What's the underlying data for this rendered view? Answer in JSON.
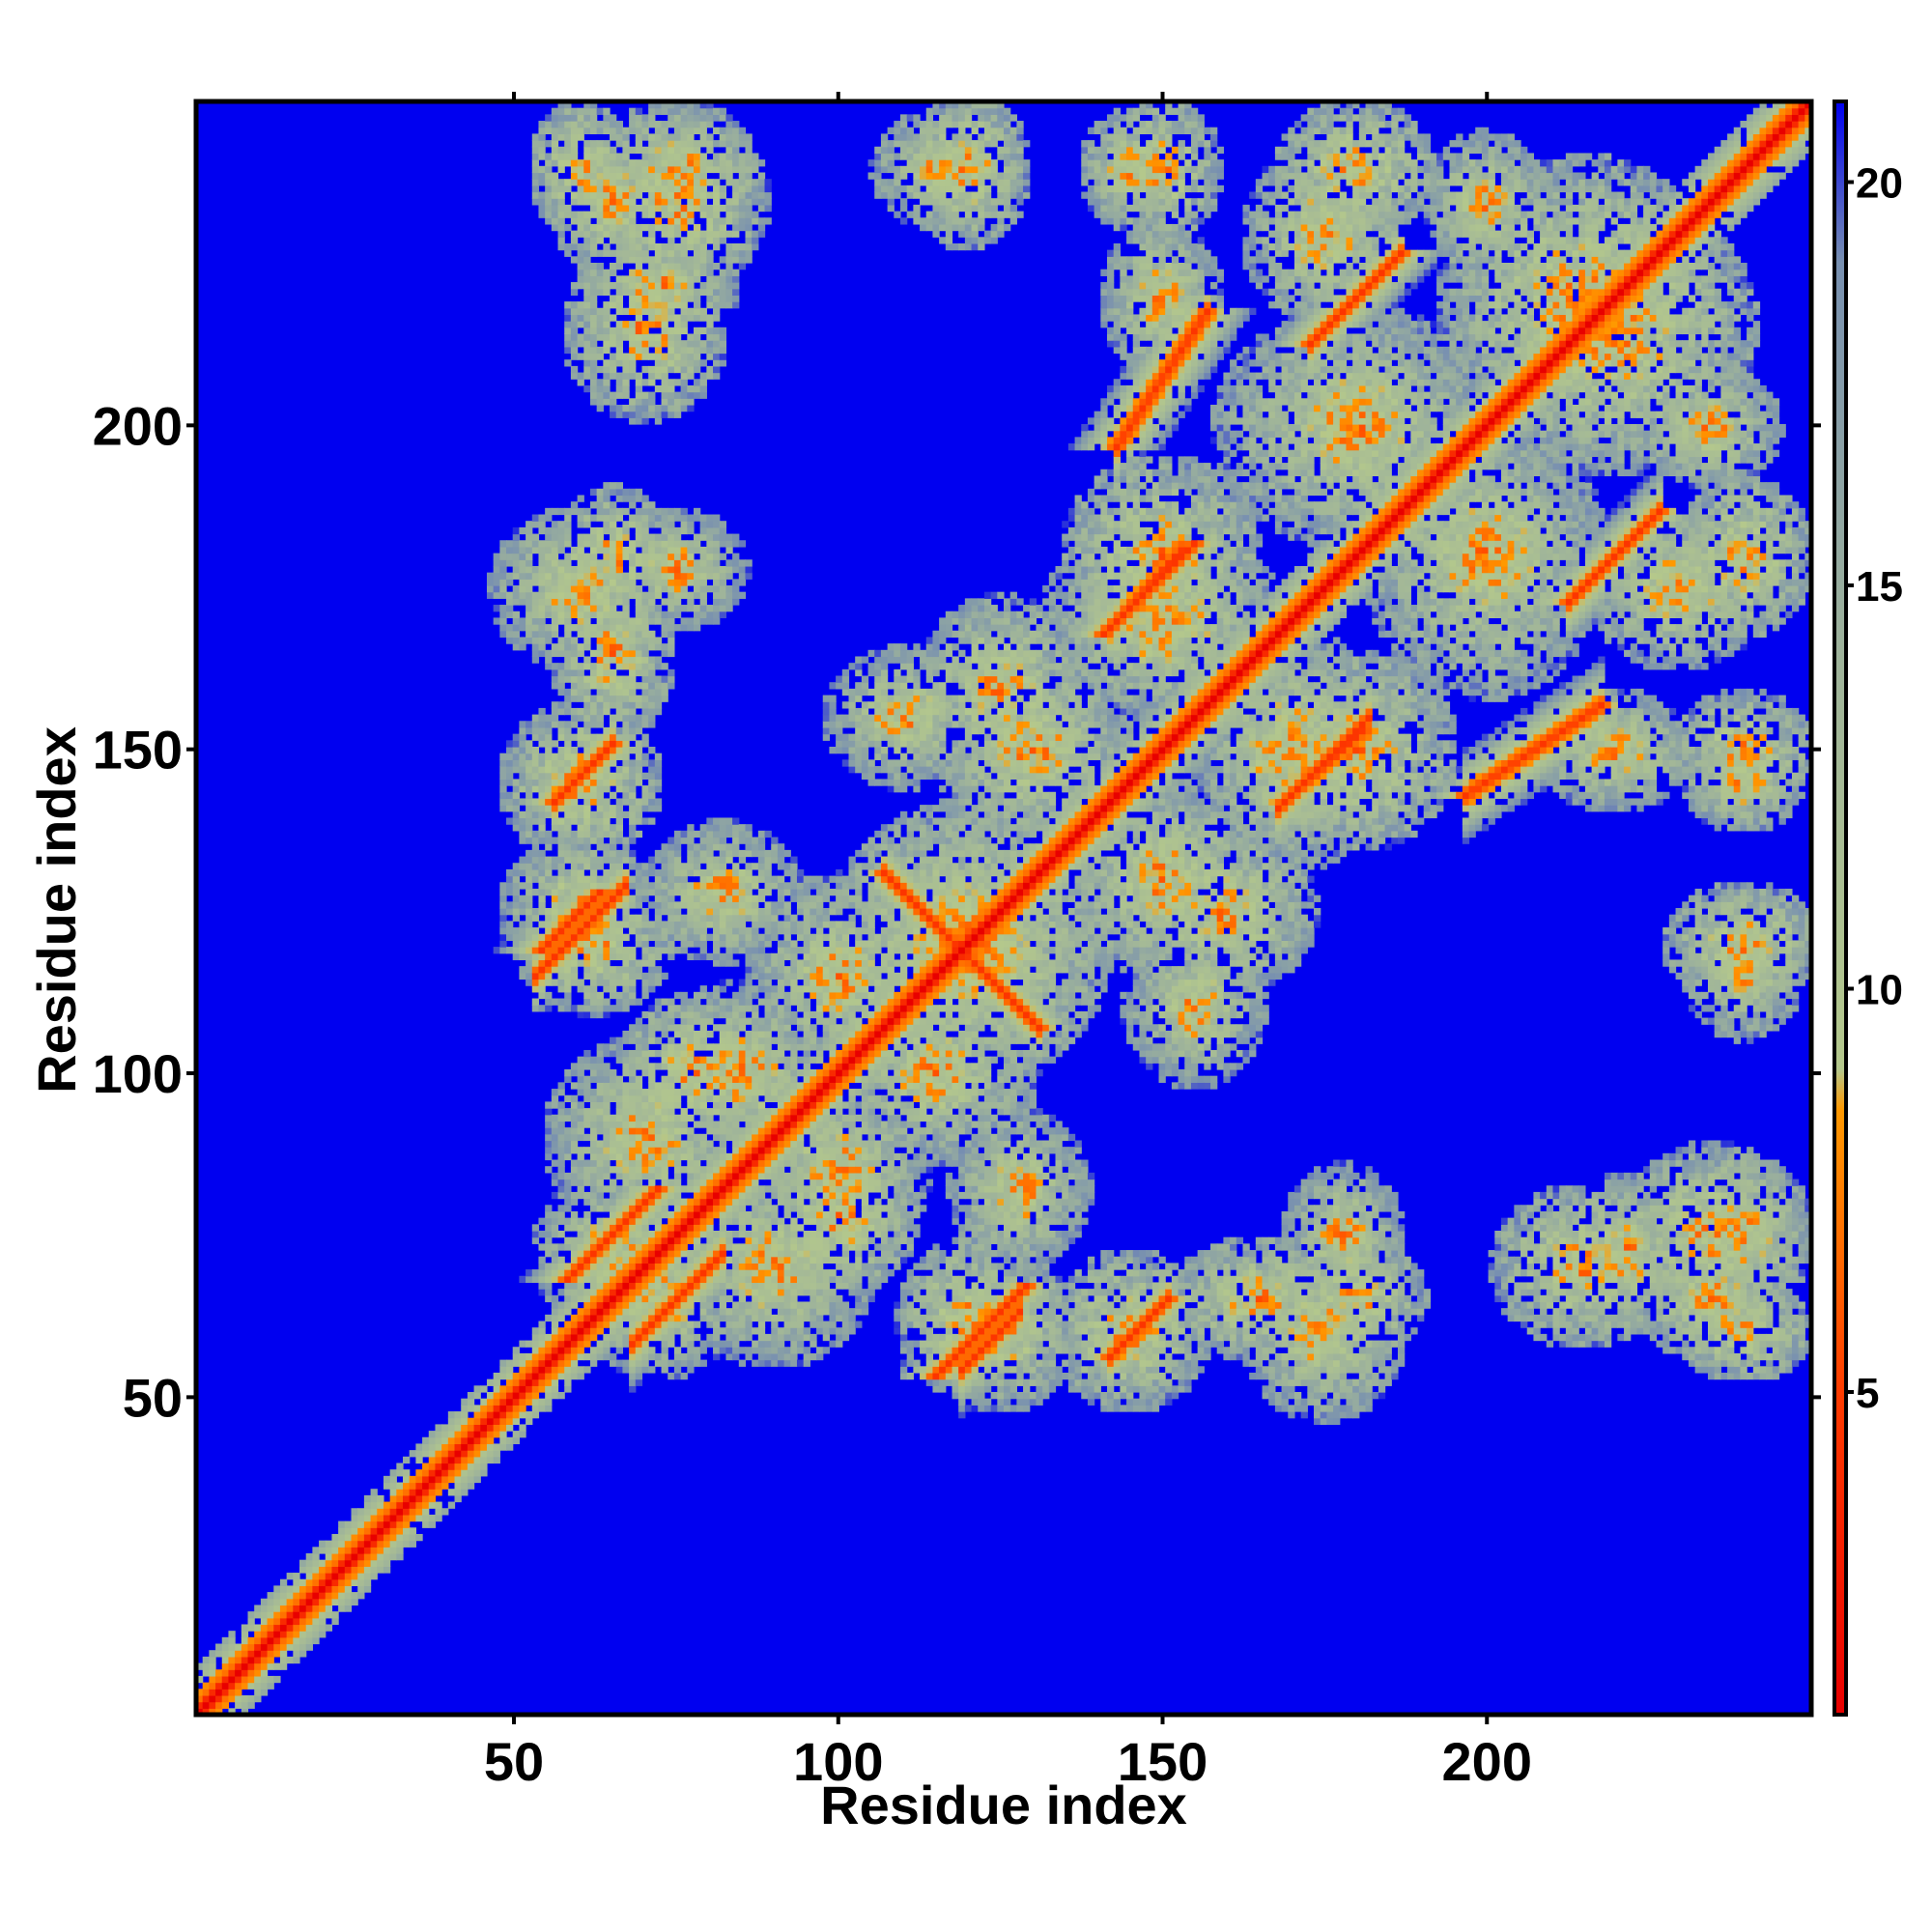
{
  "chart_data": {
    "type": "heatmap",
    "title": "",
    "xlabel": "Residue index",
    "ylabel": "Residue index",
    "n_residues": 250,
    "xlim": [
      1,
      250
    ],
    "ylim": [
      1,
      250
    ],
    "xticks": [
      50,
      100,
      150,
      200
    ],
    "yticks": [
      50,
      100,
      150,
      200
    ],
    "colorbar": {
      "ticks": [
        5,
        10,
        15,
        20
      ],
      "range": [
        1,
        21
      ],
      "colors": {
        "contact": "#e80000",
        "close": "#ff8c00",
        "mid": "#b4c88c",
        "far": "#6e8cb4",
        "background": "#0000f0"
      },
      "stops": [
        {
          "value": 1,
          "color": "#e80000"
        },
        {
          "value": 5,
          "color": "#ff3c00"
        },
        {
          "value": 8.5,
          "color": "#ff9900"
        },
        {
          "value": 9,
          "color": "#b4c88c"
        },
        {
          "value": 14,
          "color": "#9fb49a"
        },
        {
          "value": 19,
          "color": "#7890b0"
        },
        {
          "value": 21,
          "color": "#0000f0"
        }
      ]
    },
    "contact_segments": [
      {
        "i": [
          110,
          128
        ],
        "j": [
          128,
          110
        ],
        "kind": "antiparallel"
      },
      {
        "i": [
          55,
          65
        ],
        "j": [
          117,
          127
        ],
        "kind": "parallel"
      },
      {
        "i": [
          57,
          64
        ],
        "j": [
          143,
          150
        ],
        "kind": "parallel"
      },
      {
        "i": [
          170,
          180
        ],
        "j": [
          143,
          153
        ],
        "kind": "parallel"
      },
      {
        "i": [
          143,
          152
        ],
        "j": [
          170,
          180
        ],
        "kind": "parallel"
      },
      {
        "i": [
          120,
          127
        ],
        "j": [
          55,
          62
        ],
        "kind": "parallel"
      },
      {
        "i": [
          143,
          150
        ],
        "j": [
          57,
          64
        ],
        "kind": "parallel"
      },
      {
        "i": [
          175,
          185
        ],
        "j": [
          215,
          225
        ],
        "kind": "parallel"
      },
      {
        "i": [
          215,
          225
        ],
        "j": [
          175,
          185
        ],
        "kind": "parallel"
      },
      {
        "i": [
          70,
          80
        ],
        "j": [
          60,
          70
        ],
        "kind": "parallel"
      },
      {
        "i": [
          200,
          215
        ],
        "j": [
          145,
          155
        ],
        "kind": "parallel"
      },
      {
        "i": [
          145,
          155
        ],
        "j": [
          200,
          215
        ],
        "kind": "parallel"
      }
    ],
    "contact_regions": [
      {
        "center": [
          120,
          120
        ],
        "radius": [
          14,
          14
        ]
      },
      {
        "center": [
          60,
          125
        ],
        "radius": [
          8,
          8
        ]
      },
      {
        "center": [
          60,
          175
        ],
        "radius": [
          9,
          8
        ]
      },
      {
        "center": [
          75,
          178
        ],
        "radius": [
          7,
          6
        ]
      },
      {
        "center": [
          65,
          235
        ],
        "radius": [
          6,
          8
        ]
      },
      {
        "center": [
          75,
          240
        ],
        "radius": [
          8,
          7
        ]
      },
      {
        "center": [
          72,
          222
        ],
        "radius": [
          8,
          6
        ]
      },
      {
        "center": [
          116,
          240
        ],
        "radius": [
          7,
          6
        ]
      },
      {
        "center": [
          145,
          240
        ],
        "radius": [
          5,
          6
        ]
      },
      {
        "center": [
          150,
          220
        ],
        "radius": [
          6,
          8
        ]
      },
      {
        "center": [
          175,
          230
        ],
        "radius": [
          8,
          9
        ]
      },
      {
        "center": [
          200,
          235
        ],
        "radius": [
          6,
          7
        ]
      },
      {
        "center": [
          220,
          215
        ],
        "radius": [
          14,
          14
        ]
      },
      {
        "center": [
          240,
          180
        ],
        "radius": [
          7,
          8
        ]
      },
      {
        "center": [
          240,
          150
        ],
        "radius": [
          7,
          6
        ]
      },
      {
        "center": [
          240,
          120
        ],
        "radius": [
          8,
          6
        ]
      },
      {
        "center": [
          235,
          75
        ],
        "radius": [
          9,
          9
        ]
      },
      {
        "center": [
          240,
          60
        ],
        "radius": [
          7,
          5
        ]
      },
      {
        "center": [
          180,
          200
        ],
        "radius": [
          14,
          12
        ]
      },
      {
        "center": [
          150,
          170
        ],
        "radius": [
          12,
          10
        ]
      },
      {
        "center": [
          180,
          150
        ],
        "radius": [
          10,
          10
        ]
      },
      {
        "center": [
          130,
          150
        ],
        "radius": [
          10,
          10
        ]
      },
      {
        "center": [
          110,
          155
        ],
        "radius": [
          8,
          7
        ]
      },
      {
        "center": [
          100,
          115
        ],
        "radius": [
          9,
          10
        ]
      },
      {
        "center": [
          85,
          100
        ],
        "radius": [
          9,
          9
        ]
      },
      {
        "center": [
          70,
          90
        ],
        "radius": [
          10,
          10
        ]
      },
      {
        "center": [
          65,
          72
        ],
        "radius": [
          8,
          8
        ]
      },
      {
        "center": [
          120,
          62
        ],
        "radius": [
          7,
          8
        ]
      },
      {
        "center": [
          145,
          60
        ],
        "radius": [
          8,
          8
        ]
      },
      {
        "center": [
          165,
          65
        ],
        "radius": [
          9,
          6
        ]
      },
      {
        "center": [
          180,
          65
        ],
        "radius": [
          7,
          6
        ]
      },
      {
        "center": [
          215,
          70
        ],
        "radius": [
          9,
          8
        ]
      },
      {
        "center": [
          160,
          125
        ],
        "radius": [
          9,
          8
        ]
      },
      {
        "center": [
          100,
          78
        ],
        "radius": [
          8,
          8
        ]
      },
      {
        "center": [
          82,
          128
        ],
        "radius": [
          8,
          7
        ]
      }
    ]
  }
}
